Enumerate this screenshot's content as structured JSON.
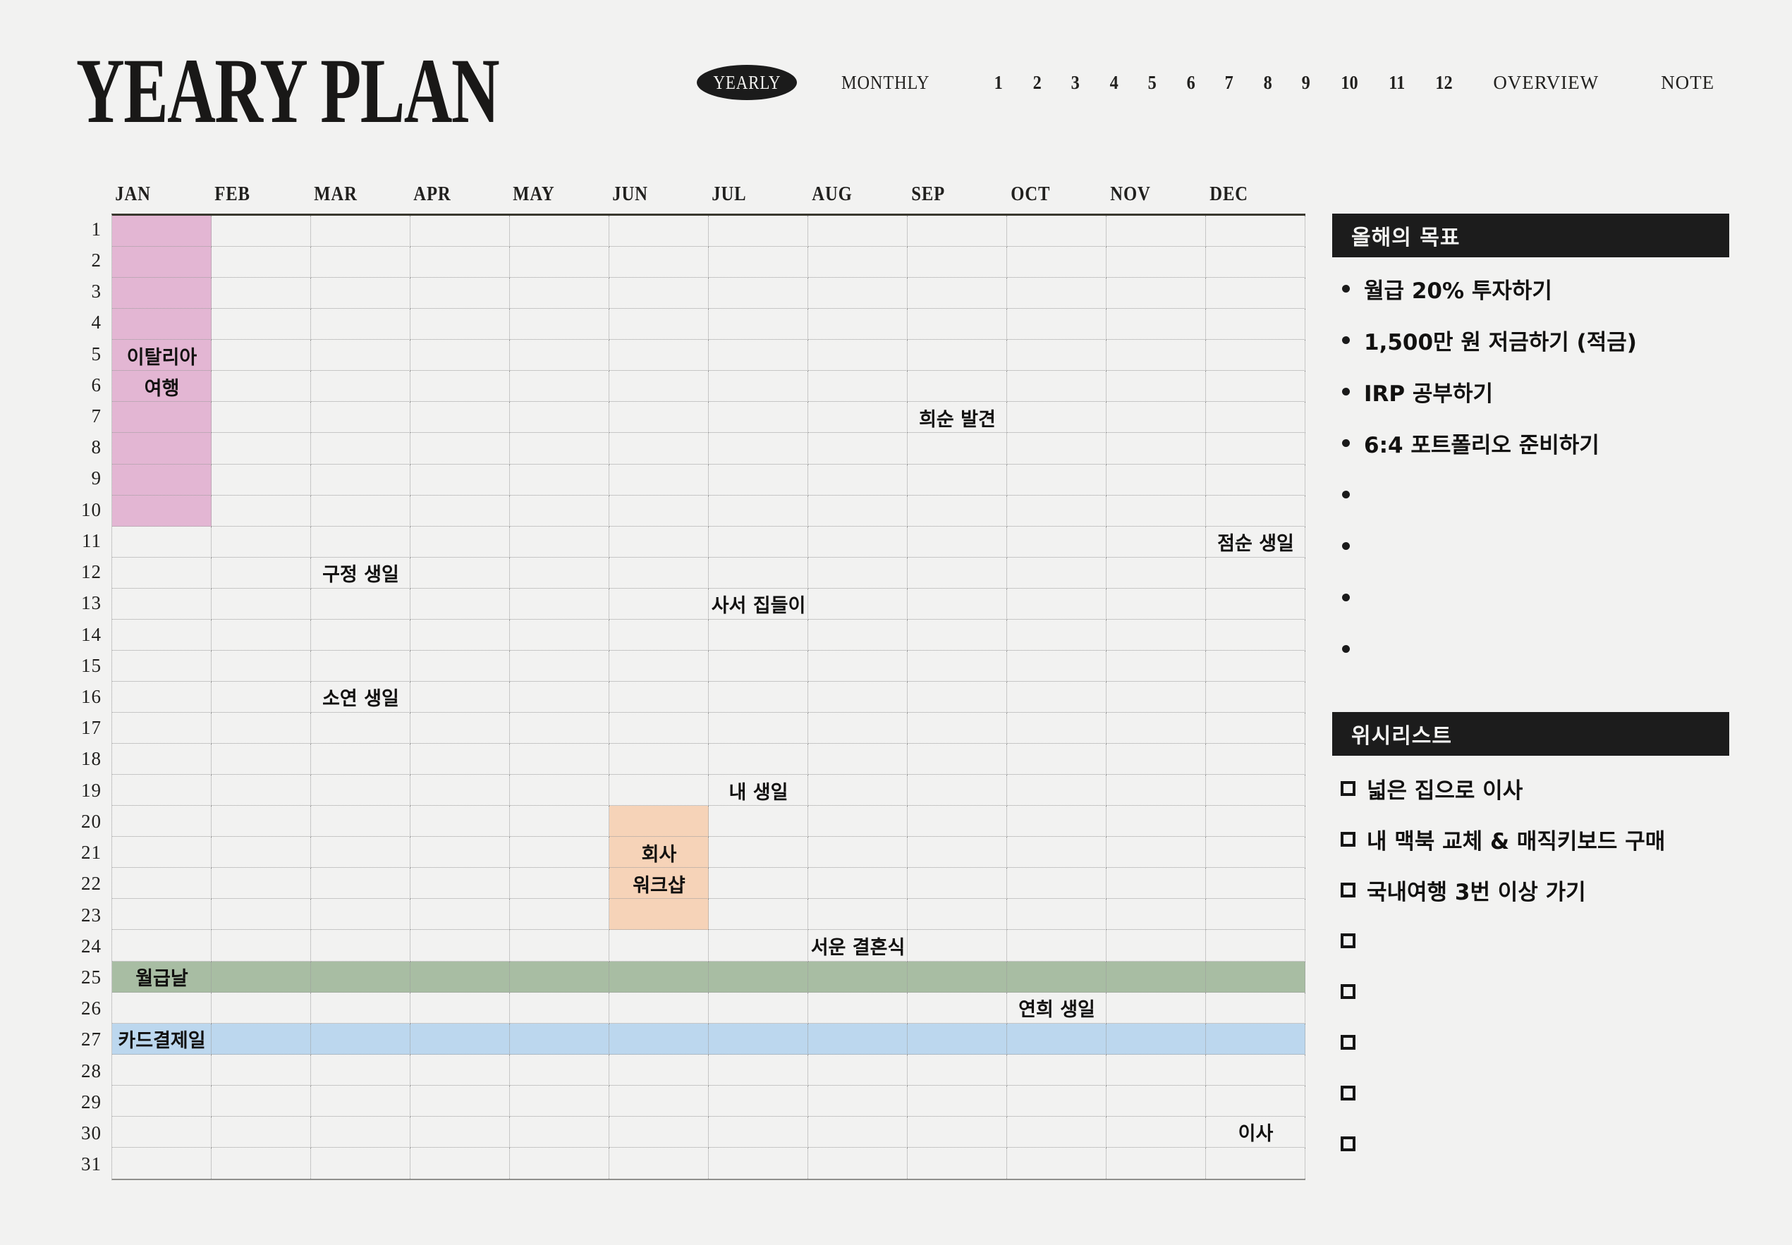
{
  "page": {
    "background": "#f2f2f1"
  },
  "header": {
    "title": "YEARY PLAN",
    "nav": {
      "yearly_label": "YEARLY",
      "monthly_label": "MONTHLY",
      "month_numbers": [
        "1",
        "2",
        "3",
        "4",
        "5",
        "6",
        "7",
        "8",
        "9",
        "10",
        "11",
        "12"
      ],
      "overview_label": "OVERVIEW",
      "note_label": "NOTE"
    }
  },
  "calendar": {
    "months": [
      "JAN",
      "FEB",
      "MAR",
      "APR",
      "MAY",
      "JUN",
      "JUL",
      "AUG",
      "SEP",
      "OCT",
      "NOV",
      "DEC"
    ],
    "days": [
      "1",
      "2",
      "3",
      "4",
      "5",
      "6",
      "7",
      "8",
      "9",
      "10",
      "11",
      "12",
      "13",
      "14",
      "15",
      "16",
      "17",
      "18",
      "19",
      "20",
      "21",
      "22",
      "23",
      "24",
      "25",
      "26",
      "27",
      "28",
      "29",
      "30",
      "31"
    ],
    "events": [
      {
        "text": "이탈리아",
        "col": 1,
        "row": 5
      },
      {
        "text": "여행",
        "col": 1,
        "row": 6
      },
      {
        "text": "희순 발견",
        "col": 9,
        "row": 7
      },
      {
        "text": "점순 생일",
        "col": 12,
        "row": 11
      },
      {
        "text": "구정 생일",
        "col": 3,
        "row": 12
      },
      {
        "text": "사서 집들이",
        "col": 7,
        "row": 13
      },
      {
        "text": "소연 생일",
        "col": 3,
        "row": 16
      },
      {
        "text": "내 생일",
        "col": 7,
        "row": 19
      },
      {
        "text": "회사",
        "col": 6,
        "row": 21
      },
      {
        "text": "워크샵",
        "col": 6,
        "row": 22
      },
      {
        "text": "서운 결혼식",
        "col": 8,
        "row": 24
      },
      {
        "text": "월급날",
        "col": 1,
        "row": 25
      },
      {
        "text": "연희 생일",
        "col": 10,
        "row": 26
      },
      {
        "text": "카드결제일",
        "col": 1,
        "row": 27
      },
      {
        "text": "이사",
        "col": 12,
        "row": 30
      }
    ],
    "highlights": [
      {
        "name": "italy-trip-block",
        "col_start": 1,
        "col_end": 1,
        "row_start": 1,
        "row_end": 10,
        "color": "#e3b6d3"
      },
      {
        "name": "workshop-block",
        "col_start": 6,
        "col_end": 6,
        "row_start": 20,
        "row_end": 23,
        "color": "#f6d3b8"
      },
      {
        "name": "payday-row",
        "col_start": 1,
        "col_end": 12,
        "row_start": 25,
        "row_end": 25,
        "color": "#a8bda3"
      },
      {
        "name": "card-billing-row",
        "col_start": 1,
        "col_end": 12,
        "row_start": 27,
        "row_end": 27,
        "color": "#bcd7ee"
      }
    ]
  },
  "sidebar": {
    "goals": {
      "title": "올해의 목표",
      "items": [
        "월급 20% 투자하기",
        "1,500만 원 저금하기 (적금)",
        "IRP 공부하기",
        "6:4 포트폴리오 준비하기",
        "",
        "",
        "",
        ""
      ]
    },
    "wishlist": {
      "title": "위시리스트",
      "items": [
        "넓은 집으로 이사",
        "내 맥북 교체 & 매직키보드 구매",
        "국내여행 3번 이상 가기",
        "",
        "",
        "",
        "",
        ""
      ]
    }
  },
  "colors": {
    "background": "#f2f2f1",
    "ink": "#1c1b1a",
    "section_header_bg": "#1c1c1c",
    "section_header_text": "#f5f5f3",
    "nav_pill_bg": "#1b1b1b",
    "highlight_pink": "#e3b6d3",
    "highlight_orange": "#f6d3b8",
    "highlight_green": "#a8bda3",
    "highlight_blue": "#bcd7ee"
  }
}
